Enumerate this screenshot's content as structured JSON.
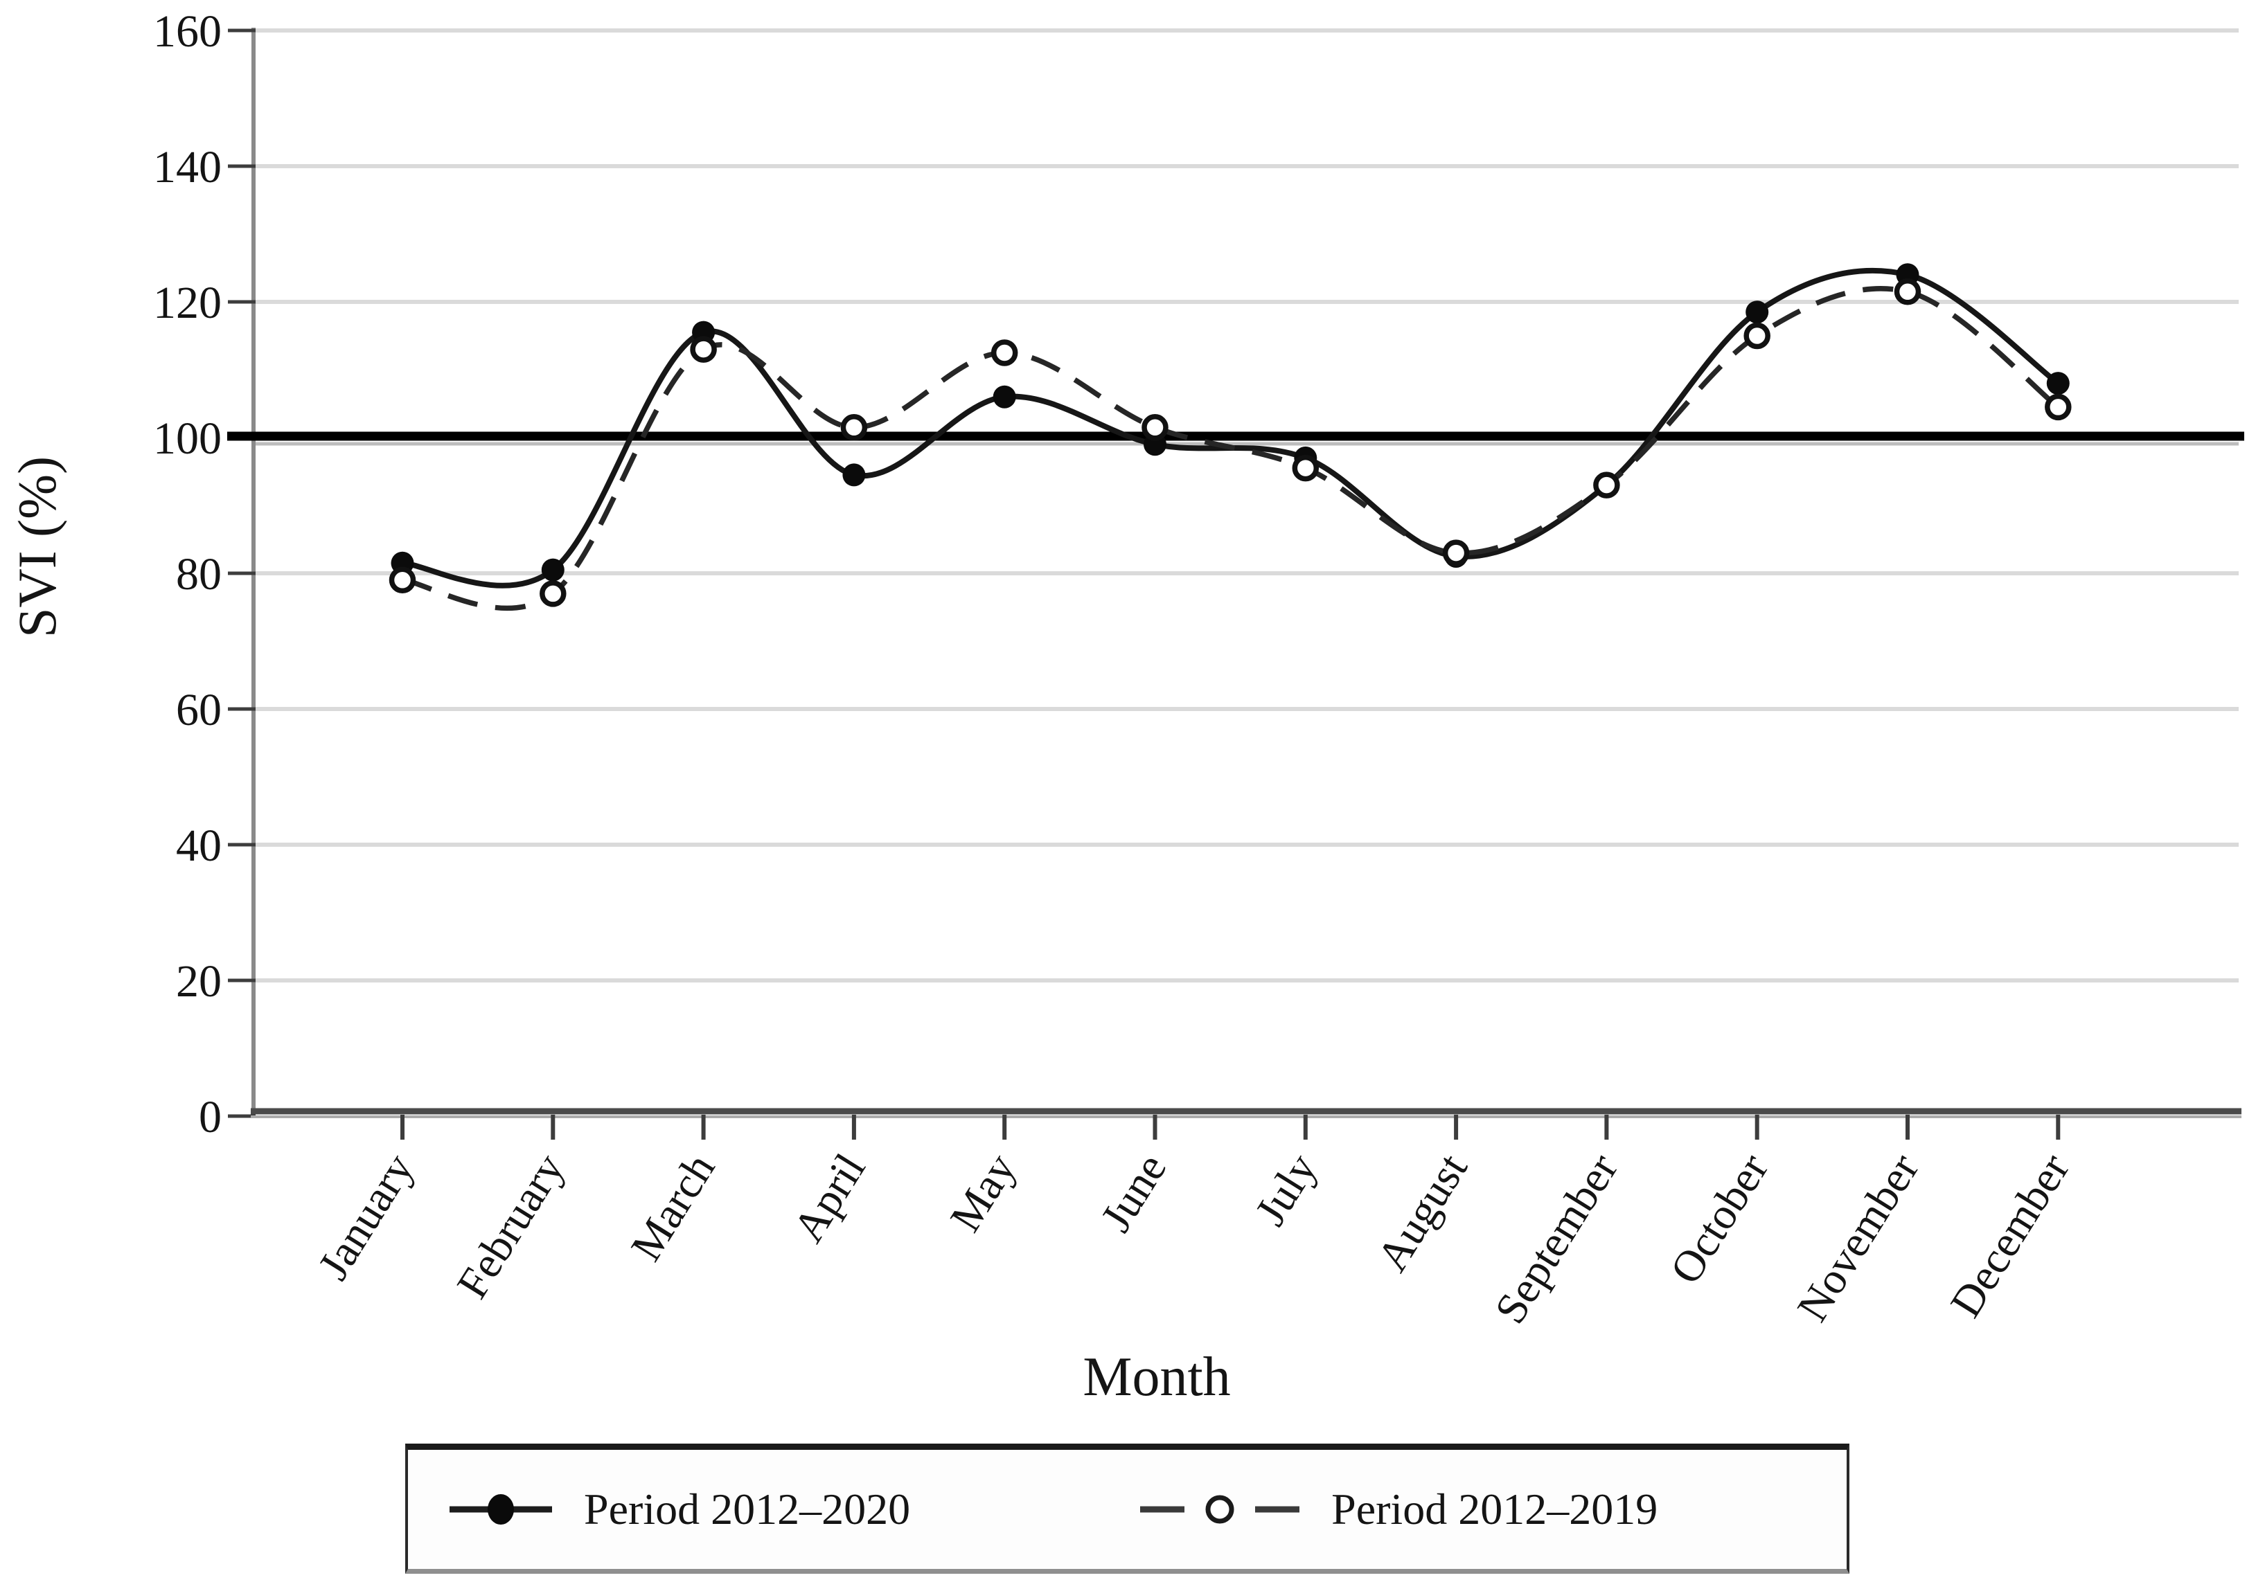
{
  "chart_data": {
    "type": "line",
    "title": "",
    "categories": [
      "January",
      "February",
      "March",
      "April",
      "May",
      "June",
      "July",
      "August",
      "September",
      "October",
      "November",
      "December"
    ],
    "series": [
      {
        "name": "Period 2012–2020",
        "line_style": "solid",
        "marker": "filled-circle",
        "color": "#161616",
        "values": [
          81.5,
          80.5,
          115.5,
          94.5,
          106,
          99,
          97,
          82.5,
          93,
          118.5,
          124,
          108
        ]
      },
      {
        "name": "Period 2012–2019",
        "line_style": "dashed",
        "marker": "open-circle",
        "color": "#262626",
        "values": [
          79,
          77,
          113,
          101.5,
          112.5,
          101.5,
          95.5,
          83,
          93,
          115,
          121.5,
          104.5
        ]
      }
    ],
    "xlabel": "Month",
    "ylabel": "SVI (%)",
    "ylim": [
      0,
      160
    ],
    "yticks": [
      0,
      20,
      40,
      60,
      80,
      100,
      120,
      140,
      160
    ],
    "reference_line": 100,
    "grid": "horizontal-only",
    "legend_position": "bottom",
    "colors": {
      "gridline": "#dadada",
      "spine": "#8a8a8a",
      "bottom_spine": "#4b4b4b",
      "tick": "#3d3d3d",
      "reference_line": "#000000",
      "text": "#141414"
    }
  }
}
